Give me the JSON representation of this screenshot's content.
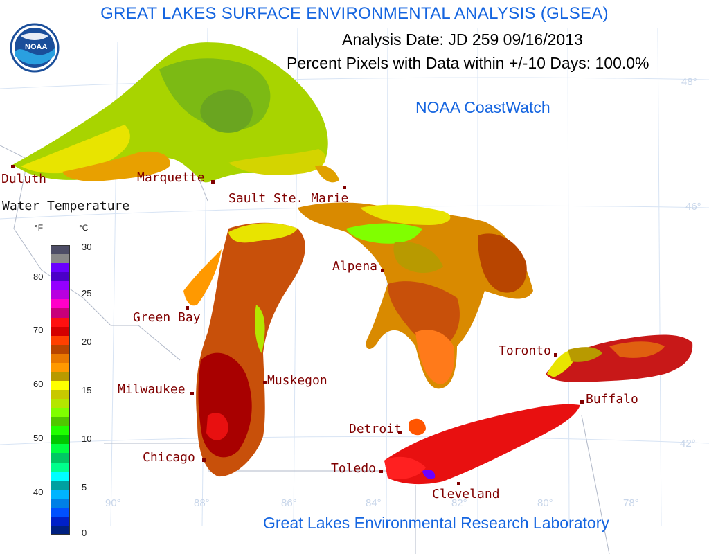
{
  "header": {
    "title": "GREAT LAKES SURFACE ENVIRONMENTAL ANALYSIS (GLSEA)",
    "analysis_date": "Analysis Date:  JD 259 09/16/2013",
    "percent_pixels": "Percent Pixels with Data within +/-10 Days: 100.0%",
    "source": "NOAA CoastWatch",
    "footer": "Great Lakes Environmental Research Laboratory",
    "logo_text": "NOAA"
  },
  "legend": {
    "title": "Water Temperature",
    "unit_f": "°F",
    "unit_c": "°C",
    "f_ticks": [
      "80",
      "70",
      "60",
      "50",
      "40"
    ],
    "c_ticks": [
      "30",
      "25",
      "20",
      "15",
      "10",
      "5",
      "0"
    ],
    "colors": [
      "#4d4d66",
      "#888888",
      "#6a00ff",
      "#4b00c8",
      "#9400ff",
      "#b800e0",
      "#ff00c8",
      "#c8007a",
      "#ff1010",
      "#d40000",
      "#ff4000",
      "#b84500",
      "#e87800",
      "#ff9900",
      "#b89a00",
      "#ffff00",
      "#c8c800",
      "#b4e600",
      "#80ff00",
      "#50c800",
      "#20ff00",
      "#00c800",
      "#00ff40",
      "#00c864",
      "#00ff8c",
      "#00ffff",
      "#00a0a0",
      "#00b4ff",
      "#0080e6",
      "#0050ff",
      "#0020c8",
      "#002080"
    ]
  },
  "cities": {
    "duluth": "Duluth",
    "marquette": "Marquette",
    "sault": "Sault Ste. Marie",
    "green_bay": "Green Bay",
    "milwaukee": "Milwaukee",
    "muskegon": "Muskegon",
    "chicago": "Chicago",
    "alpena": "Alpena",
    "detroit": "Detroit",
    "toledo": "Toledo",
    "cleveland": "Cleveland",
    "toronto": "Toronto",
    "buffalo": "Buffalo"
  },
  "graticule": {
    "lat48": "48°",
    "lat46": "46°",
    "lat42": "42°",
    "lon90": "90°",
    "lon88": "88°",
    "lon86": "86°",
    "lon84": "84°",
    "lon82": "82°",
    "lon80": "80°",
    "lon78": "78°"
  },
  "lake_colors": {
    "superior": "#a8d400",
    "michigan": "#b84500",
    "huron": "#d98a00",
    "erie": "#e81010",
    "ontario": "#c81818"
  }
}
